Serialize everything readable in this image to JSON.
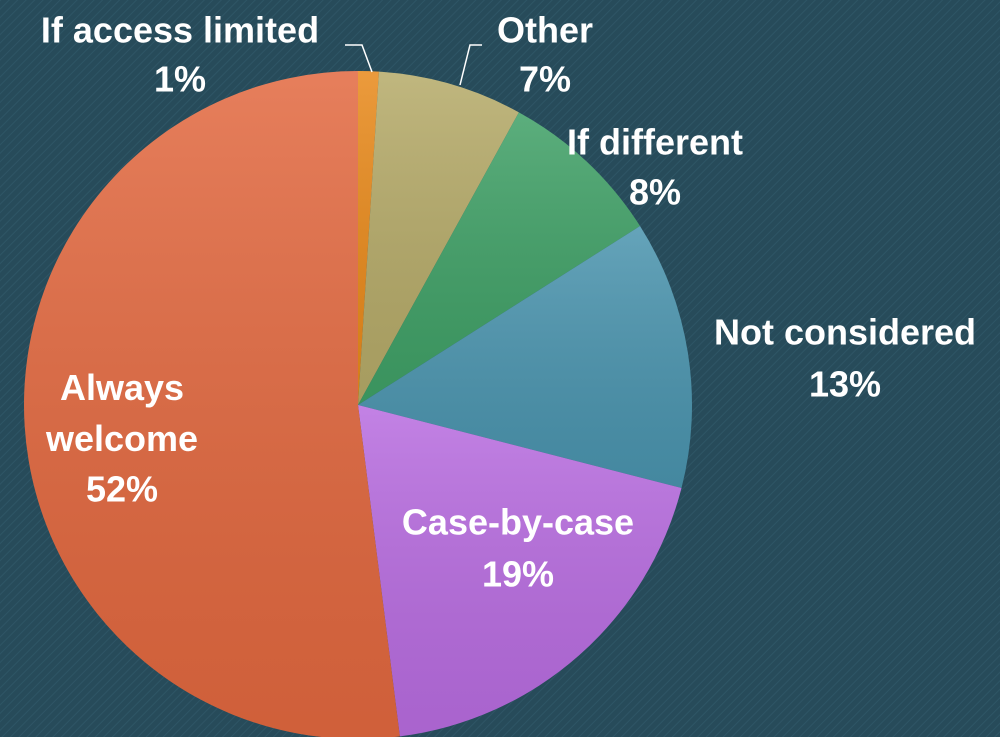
{
  "chart_data": {
    "type": "pie",
    "categories": [
      "If access limited",
      "Other",
      "If different",
      "Not considered",
      "Case-by-case",
      "Always welcome"
    ],
    "values": [
      1,
      7,
      8,
      13,
      19,
      52
    ],
    "value_labels": [
      "1%",
      "7%",
      "8%",
      "13%",
      "19%",
      "52%"
    ],
    "colors": [
      "#e8891a",
      "#b5aa68",
      "#3fa066",
      "#4a94ae",
      "#b86ce0",
      "#e2683f"
    ]
  }
}
